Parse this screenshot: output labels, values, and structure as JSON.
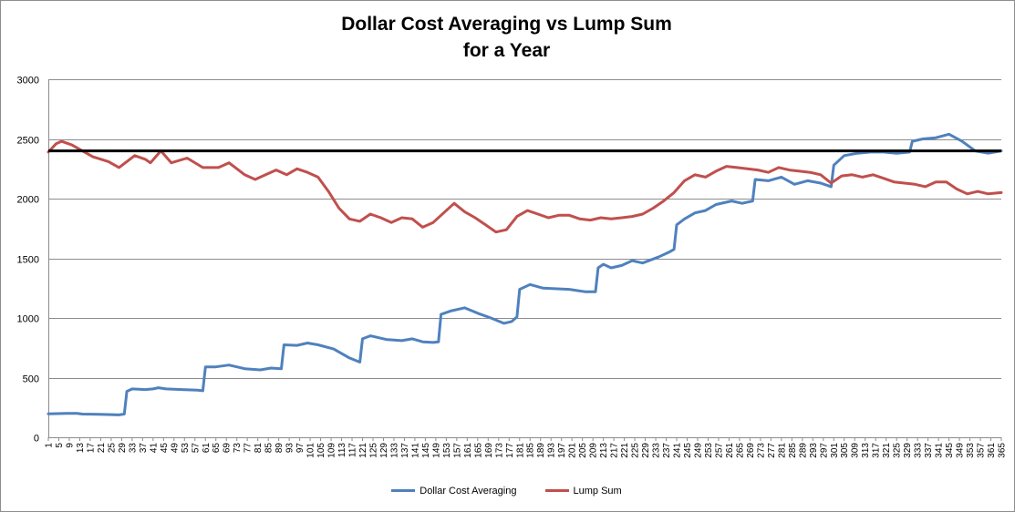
{
  "chart_data": {
    "type": "line",
    "title": "Dollar Cost Averaging vs Lump Sum",
    "subtitle": "for a Year",
    "xlabel": "",
    "ylabel": "",
    "ylim": [
      0,
      3000
    ],
    "y_ticks": [
      0,
      500,
      1000,
      1500,
      2000,
      2500,
      3000
    ],
    "xlim": [
      1,
      365
    ],
    "x_tick_start": 1,
    "x_tick_step": 4,
    "x_tick_end": 365,
    "grid": "horizontal",
    "legend_position": "bottom",
    "reference_line": {
      "y": 2400,
      "color": "#000000"
    },
    "series": [
      {
        "name": "Dollar Cost Averaging",
        "color": "#4f81bd",
        "points": [
          [
            1,
            197
          ],
          [
            8,
            200
          ],
          [
            12,
            200
          ],
          [
            14,
            195
          ],
          [
            20,
            192
          ],
          [
            25,
            190
          ],
          [
            28,
            188
          ],
          [
            30,
            195
          ],
          [
            31,
            385
          ],
          [
            33,
            405
          ],
          [
            38,
            400
          ],
          [
            41,
            405
          ],
          [
            43,
            415
          ],
          [
            46,
            405
          ],
          [
            52,
            400
          ],
          [
            58,
            395
          ],
          [
            60,
            390
          ],
          [
            61,
            590
          ],
          [
            65,
            590
          ],
          [
            70,
            605
          ],
          [
            76,
            575
          ],
          [
            82,
            565
          ],
          [
            86,
            580
          ],
          [
            90,
            575
          ],
          [
            91,
            775
          ],
          [
            96,
            770
          ],
          [
            100,
            790
          ],
          [
            104,
            775
          ],
          [
            110,
            740
          ],
          [
            116,
            665
          ],
          [
            120,
            630
          ],
          [
            121,
            825
          ],
          [
            124,
            850
          ],
          [
            130,
            820
          ],
          [
            136,
            810
          ],
          [
            140,
            825
          ],
          [
            144,
            800
          ],
          [
            148,
            795
          ],
          [
            150,
            800
          ],
          [
            151,
            1030
          ],
          [
            155,
            1060
          ],
          [
            160,
            1085
          ],
          [
            165,
            1040
          ],
          [
            170,
            1000
          ],
          [
            175,
            955
          ],
          [
            178,
            970
          ],
          [
            180,
            1010
          ],
          [
            181,
            1240
          ],
          [
            185,
            1280
          ],
          [
            190,
            1250
          ],
          [
            200,
            1240
          ],
          [
            206,
            1220
          ],
          [
            210,
            1220
          ],
          [
            211,
            1420
          ],
          [
            213,
            1450
          ],
          [
            216,
            1420
          ],
          [
            220,
            1440
          ],
          [
            224,
            1480
          ],
          [
            228,
            1460
          ],
          [
            234,
            1510
          ],
          [
            238,
            1550
          ],
          [
            240,
            1575
          ],
          [
            241,
            1780
          ],
          [
            244,
            1830
          ],
          [
            248,
            1880
          ],
          [
            252,
            1900
          ],
          [
            256,
            1950
          ],
          [
            262,
            1980
          ],
          [
            266,
            1960
          ],
          [
            270,
            1980
          ],
          [
            271,
            2160
          ],
          [
            276,
            2150
          ],
          [
            281,
            2180
          ],
          [
            286,
            2120
          ],
          [
            291,
            2150
          ],
          [
            296,
            2130
          ],
          [
            300,
            2100
          ],
          [
            301,
            2280
          ],
          [
            305,
            2360
          ],
          [
            310,
            2380
          ],
          [
            315,
            2390
          ],
          [
            320,
            2390
          ],
          [
            325,
            2380
          ],
          [
            330,
            2390
          ],
          [
            331,
            2480
          ],
          [
            335,
            2500
          ],
          [
            340,
            2510
          ],
          [
            345,
            2540
          ],
          [
            350,
            2480
          ],
          [
            355,
            2400
          ],
          [
            360,
            2380
          ],
          [
            365,
            2400
          ]
        ]
      },
      {
        "name": "Lump Sum",
        "color": "#c0504d",
        "points": [
          [
            1,
            2390
          ],
          [
            4,
            2460
          ],
          [
            6,
            2480
          ],
          [
            10,
            2450
          ],
          [
            14,
            2400
          ],
          [
            18,
            2350
          ],
          [
            24,
            2310
          ],
          [
            28,
            2260
          ],
          [
            34,
            2360
          ],
          [
            38,
            2330
          ],
          [
            40,
            2300
          ],
          [
            44,
            2400
          ],
          [
            48,
            2300
          ],
          [
            54,
            2340
          ],
          [
            60,
            2260
          ],
          [
            66,
            2260
          ],
          [
            70,
            2300
          ],
          [
            76,
            2200
          ],
          [
            80,
            2160
          ],
          [
            84,
            2200
          ],
          [
            88,
            2240
          ],
          [
            92,
            2200
          ],
          [
            96,
            2250
          ],
          [
            100,
            2220
          ],
          [
            104,
            2180
          ],
          [
            108,
            2060
          ],
          [
            112,
            1920
          ],
          [
            116,
            1830
          ],
          [
            120,
            1810
          ],
          [
            124,
            1870
          ],
          [
            128,
            1840
          ],
          [
            132,
            1800
          ],
          [
            136,
            1840
          ],
          [
            140,
            1830
          ],
          [
            144,
            1760
          ],
          [
            148,
            1800
          ],
          [
            152,
            1880
          ],
          [
            156,
            1960
          ],
          [
            160,
            1890
          ],
          [
            164,
            1840
          ],
          [
            168,
            1780
          ],
          [
            172,
            1720
          ],
          [
            176,
            1740
          ],
          [
            180,
            1850
          ],
          [
            184,
            1900
          ],
          [
            188,
            1870
          ],
          [
            192,
            1840
          ],
          [
            196,
            1860
          ],
          [
            200,
            1860
          ],
          [
            204,
            1830
          ],
          [
            208,
            1820
          ],
          [
            212,
            1840
          ],
          [
            216,
            1830
          ],
          [
            220,
            1840
          ],
          [
            224,
            1850
          ],
          [
            228,
            1870
          ],
          [
            232,
            1920
          ],
          [
            236,
            1980
          ],
          [
            240,
            2050
          ],
          [
            244,
            2150
          ],
          [
            248,
            2200
          ],
          [
            252,
            2180
          ],
          [
            256,
            2230
          ],
          [
            260,
            2270
          ],
          [
            264,
            2260
          ],
          [
            268,
            2250
          ],
          [
            272,
            2240
          ],
          [
            276,
            2220
          ],
          [
            280,
            2260
          ],
          [
            284,
            2240
          ],
          [
            288,
            2230
          ],
          [
            292,
            2220
          ],
          [
            296,
            2200
          ],
          [
            300,
            2130
          ],
          [
            304,
            2190
          ],
          [
            308,
            2200
          ],
          [
            312,
            2180
          ],
          [
            316,
            2200
          ],
          [
            320,
            2170
          ],
          [
            324,
            2140
          ],
          [
            328,
            2130
          ],
          [
            332,
            2120
          ],
          [
            336,
            2100
          ],
          [
            340,
            2140
          ],
          [
            344,
            2140
          ],
          [
            348,
            2080
          ],
          [
            352,
            2040
          ],
          [
            356,
            2060
          ],
          [
            360,
            2040
          ],
          [
            365,
            2050
          ]
        ]
      }
    ]
  }
}
